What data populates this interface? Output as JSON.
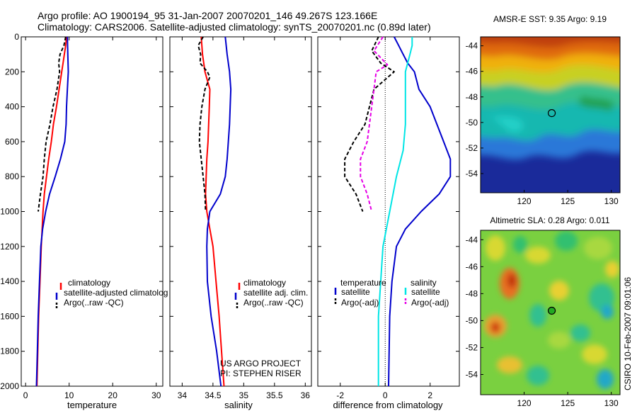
{
  "header": {
    "line1": "Argo profile: AO 1900194_95 31-Jan-2007 20070201_146 49.267S 123.166E",
    "line2": "Climatology: CARS2006. Satellite-adjusted climatology: synTS_20070201.nc (0.89d later)"
  },
  "side_label": "CSIRO 10-Feb-2007 09:01:06",
  "colors": {
    "red": "#ff0000",
    "blue": "#0000cc",
    "black": "#000000",
    "cyan": "#00e5e5",
    "magenta": "#e600e6"
  },
  "chart_data": [
    {
      "type": "line",
      "panel": "temperature",
      "xlabel": "temperature",
      "xlim": [
        -1,
        31.5
      ],
      "xticks": [
        0,
        10,
        20,
        30
      ],
      "ylim": [
        2000,
        0
      ],
      "yticks": [
        0,
        200,
        400,
        600,
        800,
        1000,
        1200,
        1400,
        1600,
        1800,
        2000
      ],
      "legend": [
        "climatology",
        "satellite-adjusted climatolog",
        "Argo(..raw -QC)"
      ],
      "series": [
        {
          "name": "climatology",
          "color": "red",
          "style": "solid",
          "points": [
            [
              9.4,
              0
            ],
            [
              9.2,
              50
            ],
            [
              8.9,
              100
            ],
            [
              8.6,
              150
            ],
            [
              8.3,
              200
            ],
            [
              7.7,
              300
            ],
            [
              7.1,
              400
            ],
            [
              6.4,
              500
            ],
            [
              5.9,
              600
            ],
            [
              5.3,
              700
            ],
            [
              4.8,
              800
            ],
            [
              4.3,
              900
            ],
            [
              4.0,
              1000
            ],
            [
              3.6,
              1200
            ],
            [
              3.3,
              1400
            ],
            [
              3.0,
              1600
            ],
            [
              2.8,
              1800
            ],
            [
              2.6,
              2000
            ]
          ]
        },
        {
          "name": "satellite-adjusted climatolog",
          "color": "blue",
          "style": "solid",
          "points": [
            [
              9.6,
              0
            ],
            [
              9.7,
              100
            ],
            [
              9.8,
              200
            ],
            [
              9.6,
              300
            ],
            [
              9.4,
              400
            ],
            [
              9.3,
              500
            ],
            [
              9.0,
              600
            ],
            [
              8.0,
              700
            ],
            [
              6.8,
              800
            ],
            [
              5.5,
              900
            ],
            [
              4.6,
              1000
            ],
            [
              3.9,
              1100
            ],
            [
              3.5,
              1200
            ],
            [
              3.2,
              1400
            ],
            [
              2.9,
              1600
            ],
            [
              2.7,
              1800
            ],
            [
              2.5,
              2000
            ]
          ]
        },
        {
          "name": "Argo(..raw -QC)",
          "color": "black",
          "style": "dashed",
          "points": [
            [
              9.2,
              0
            ],
            [
              8.8,
              50
            ],
            [
              7.9,
              100
            ],
            [
              7.6,
              150
            ],
            [
              7.8,
              200
            ],
            [
              7.2,
              300
            ],
            [
              6.3,
              400
            ],
            [
              5.6,
              500
            ],
            [
              4.7,
              600
            ],
            [
              4.3,
              700
            ],
            [
              4.0,
              800
            ],
            [
              3.4,
              900
            ],
            [
              2.9,
              1000
            ]
          ]
        }
      ]
    },
    {
      "type": "line",
      "panel": "salinity",
      "xlabel": "salinity",
      "xlim": [
        33.8,
        36.1
      ],
      "xticks": [
        34,
        34.5,
        35,
        35.5,
        36
      ],
      "ylim": [
        2000,
        0
      ],
      "legend": [
        "climatology",
        "satellite adj. clim.",
        "Argo(..raw -QC)"
      ],
      "annotation": [
        "US ARGO PROJECT",
        "PI: STEPHEN RISER"
      ],
      "series": [
        {
          "name": "climatology",
          "color": "red",
          "style": "solid",
          "points": [
            [
              34.31,
              0
            ],
            [
              34.33,
              100
            ],
            [
              34.37,
              200
            ],
            [
              34.45,
              300
            ],
            [
              34.44,
              400
            ],
            [
              34.43,
              500
            ],
            [
              34.42,
              600
            ],
            [
              34.4,
              700
            ],
            [
              34.39,
              800
            ],
            [
              34.38,
              900
            ],
            [
              34.4,
              1000
            ],
            [
              34.45,
              1100
            ],
            [
              34.5,
              1200
            ],
            [
              34.55,
              1400
            ],
            [
              34.6,
              1600
            ],
            [
              34.64,
              1800
            ],
            [
              34.68,
              2000
            ]
          ]
        },
        {
          "name": "satellite adj. clim.",
          "color": "blue",
          "style": "solid",
          "points": [
            [
              34.7,
              0
            ],
            [
              34.73,
              100
            ],
            [
              34.77,
              200
            ],
            [
              34.79,
              300
            ],
            [
              34.78,
              400
            ],
            [
              34.77,
              500
            ],
            [
              34.75,
              600
            ],
            [
              34.73,
              700
            ],
            [
              34.7,
              800
            ],
            [
              34.62,
              900
            ],
            [
              34.45,
              1000
            ],
            [
              34.41,
              1100
            ],
            [
              34.4,
              1200
            ],
            [
              34.41,
              1400
            ],
            [
              34.47,
              1600
            ],
            [
              34.56,
              1800
            ],
            [
              34.63,
              2000
            ]
          ]
        },
        {
          "name": "Argo(..raw -QC)",
          "color": "black",
          "style": "dashed",
          "points": [
            [
              34.34,
              0
            ],
            [
              34.26,
              50
            ],
            [
              34.3,
              100
            ],
            [
              34.29,
              150
            ],
            [
              34.41,
              200
            ],
            [
              34.45,
              230
            ],
            [
              34.37,
              300
            ],
            [
              34.32,
              400
            ],
            [
              34.29,
              500
            ],
            [
              34.28,
              600
            ],
            [
              34.31,
              700
            ],
            [
              34.34,
              800
            ],
            [
              34.37,
              900
            ],
            [
              34.38,
              1000
            ]
          ]
        }
      ]
    },
    {
      "type": "line",
      "panel": "difference from climatology",
      "xlabel": "difference from climatology",
      "xlim": [
        -3,
        3.3
      ],
      "xticks": [
        -2,
        0,
        2
      ],
      "ylim": [
        2000,
        0
      ],
      "legend_headers": [
        "temperature",
        "salinity"
      ],
      "legend": [
        "satellite",
        "Argo(-adj)",
        "satellite",
        "Argo(-adj)"
      ],
      "series": [
        {
          "name": "satellite",
          "group": "temperature",
          "color": "blue",
          "style": "solid",
          "points": [
            [
              0.4,
              0
            ],
            [
              0.6,
              50
            ],
            [
              0.8,
              100
            ],
            [
              1.0,
              150
            ],
            [
              1.3,
              200
            ],
            [
              1.5,
              300
            ],
            [
              2.0,
              400
            ],
            [
              2.6,
              600
            ],
            [
              2.9,
              700
            ],
            [
              2.9,
              800
            ],
            [
              2.4,
              900
            ],
            [
              1.6,
              1000
            ],
            [
              0.9,
              1100
            ],
            [
              0.5,
              1200
            ],
            [
              0.3,
              1400
            ],
            [
              0.2,
              1600
            ],
            [
              0.15,
              2000
            ]
          ]
        },
        {
          "name": "Argo(-adj)",
          "group": "temperature",
          "color": "black",
          "style": "dashed",
          "points": [
            [
              -0.3,
              0
            ],
            [
              -0.6,
              80
            ],
            [
              -0.2,
              150
            ],
            [
              0.4,
              200
            ],
            [
              -0.5,
              300
            ],
            [
              -0.7,
              400
            ],
            [
              -0.9,
              500
            ],
            [
              -1.4,
              600
            ],
            [
              -1.8,
              700
            ],
            [
              -1.8,
              800
            ],
            [
              -1.3,
              900
            ],
            [
              -1.0,
              1000
            ]
          ]
        },
        {
          "name": "satellite",
          "group": "salinity",
          "color": "cyan",
          "style": "solid",
          "points": [
            [
              1.2,
              0
            ],
            [
              1.2,
              50
            ],
            [
              1.1,
              100
            ],
            [
              1.0,
              150
            ],
            [
              0.9,
              200
            ],
            [
              0.9,
              300
            ],
            [
              0.9,
              500
            ],
            [
              0.8,
              650
            ],
            [
              0.5,
              800
            ],
            [
              0.2,
              1000
            ],
            [
              -0.1,
              1200
            ],
            [
              -0.3,
              1600
            ],
            [
              -0.3,
              2000
            ]
          ]
        },
        {
          "name": "Argo(-adj)",
          "group": "salinity",
          "color": "magenta",
          "style": "dashed",
          "points": [
            [
              -0.1,
              0
            ],
            [
              -0.5,
              80
            ],
            [
              0.1,
              160
            ],
            [
              -0.4,
              200
            ],
            [
              -0.5,
              300
            ],
            [
              -0.6,
              400
            ],
            [
              -0.7,
              500
            ],
            [
              -0.8,
              600
            ],
            [
              -1.1,
              700
            ],
            [
              -1.1,
              800
            ],
            [
              -0.8,
              900
            ],
            [
              -0.6,
              1000
            ]
          ]
        }
      ]
    },
    {
      "type": "heatmap",
      "title": "AMSR-E SST: 9.35 Argo: 9.19",
      "xlim": [
        115,
        131
      ],
      "ylim": [
        -55.5,
        -43.3
      ],
      "xticks": [
        120,
        125,
        130
      ],
      "yticks": [
        -44,
        -46,
        -48,
        -50,
        -52,
        -54
      ],
      "marker": {
        "lon": 123.166,
        "lat": -49.267,
        "color": "#119911"
      }
    },
    {
      "type": "heatmap",
      "title": "Altimetric SLA: 0.28 Argo: 0.011",
      "xlim": [
        115,
        131
      ],
      "ylim": [
        -55.5,
        -43.3
      ],
      "xticks": [
        120,
        125,
        130
      ],
      "yticks": [
        -44,
        -46,
        -48,
        -50,
        -52,
        -54
      ],
      "marker": {
        "lon": 123.166,
        "lat": -49.267,
        "color": "#22aa22"
      }
    }
  ]
}
